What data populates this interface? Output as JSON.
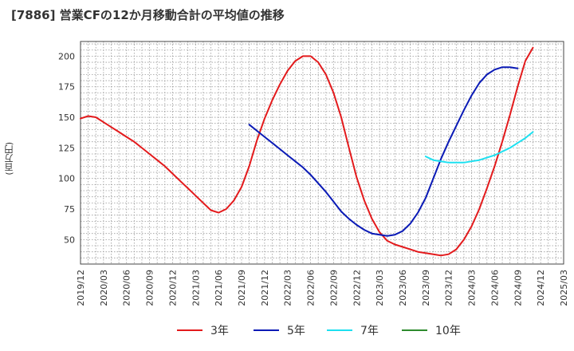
{
  "title": "[7886]  営業CFの12か月移動合計の平均値の推移",
  "chart_data": {
    "type": "line",
    "title": "[7886]  営業CFの12か月移動合計の平均値の推移",
    "xlabel": "",
    "ylabel": "(百万円)",
    "xlim": [
      "2019-12",
      "2025-03"
    ],
    "ylim": [
      30,
      212
    ],
    "yticks": [
      50,
      75,
      100,
      125,
      150,
      175,
      200
    ],
    "xticks": [
      "2019/12",
      "2020/03",
      "2020/06",
      "2020/09",
      "2020/12",
      "2021/03",
      "2021/06",
      "2021/09",
      "2021/12",
      "2022/03",
      "2022/06",
      "2022/09",
      "2022/12",
      "2023/03",
      "2023/06",
      "2023/09",
      "2023/12",
      "2024/03",
      "2024/06",
      "2024/09",
      "2024/12",
      "2025/03"
    ],
    "grid": true,
    "legend_position": "bottom",
    "series": [
      {
        "name": "3年",
        "color": "#e31a1c",
        "points": [
          [
            "2019-12",
            149
          ],
          [
            "2020-01",
            151
          ],
          [
            "2020-02",
            150
          ],
          [
            "2020-03",
            146
          ],
          [
            "2020-04",
            142
          ],
          [
            "2020-05",
            138
          ],
          [
            "2020-06",
            134
          ],
          [
            "2020-07",
            130
          ],
          [
            "2020-08",
            125
          ],
          [
            "2020-09",
            120
          ],
          [
            "2020-10",
            115
          ],
          [
            "2020-11",
            110
          ],
          [
            "2020-12",
            104
          ],
          [
            "2021-01",
            98
          ],
          [
            "2021-02",
            92
          ],
          [
            "2021-03",
            86
          ],
          [
            "2021-04",
            80
          ],
          [
            "2021-05",
            74
          ],
          [
            "2021-06",
            72
          ],
          [
            "2021-07",
            75
          ],
          [
            "2021-08",
            82
          ],
          [
            "2021-09",
            93
          ],
          [
            "2021-10",
            110
          ],
          [
            "2021-11",
            131
          ],
          [
            "2021-12",
            149
          ],
          [
            "2022-01",
            164
          ],
          [
            "2022-02",
            177
          ],
          [
            "2022-03",
            188
          ],
          [
            "2022-04",
            196
          ],
          [
            "2022-05",
            200
          ],
          [
            "2022-06",
            200
          ],
          [
            "2022-07",
            195
          ],
          [
            "2022-08",
            185
          ],
          [
            "2022-09",
            170
          ],
          [
            "2022-10",
            150
          ],
          [
            "2022-11",
            125
          ],
          [
            "2022-12",
            101
          ],
          [
            "2023-01",
            82
          ],
          [
            "2023-02",
            67
          ],
          [
            "2023-03",
            56
          ],
          [
            "2023-04",
            49
          ],
          [
            "2023-05",
            46
          ],
          [
            "2023-06",
            44
          ],
          [
            "2023-07",
            42
          ],
          [
            "2023-08",
            40
          ],
          [
            "2023-09",
            39
          ],
          [
            "2023-10",
            38
          ],
          [
            "2023-11",
            37
          ],
          [
            "2023-12",
            38
          ],
          [
            "2024-01",
            42
          ],
          [
            "2024-02",
            50
          ],
          [
            "2024-03",
            61
          ],
          [
            "2024-04",
            75
          ],
          [
            "2024-05",
            92
          ],
          [
            "2024-06",
            110
          ],
          [
            "2024-07",
            130
          ],
          [
            "2024-08",
            152
          ],
          [
            "2024-09",
            175
          ],
          [
            "2024-10",
            196
          ],
          [
            "2024-11",
            207
          ]
        ]
      },
      {
        "name": "5年",
        "color": "#0a1ab6",
        "points": [
          [
            "2021-10",
            144
          ],
          [
            "2021-11",
            139
          ],
          [
            "2021-12",
            134
          ],
          [
            "2022-01",
            129
          ],
          [
            "2022-02",
            124
          ],
          [
            "2022-03",
            119
          ],
          [
            "2022-04",
            114
          ],
          [
            "2022-05",
            109
          ],
          [
            "2022-06",
            103
          ],
          [
            "2022-07",
            96
          ],
          [
            "2022-08",
            89
          ],
          [
            "2022-09",
            81
          ],
          [
            "2022-10",
            73
          ],
          [
            "2022-11",
            67
          ],
          [
            "2022-12",
            62
          ],
          [
            "2023-01",
            58
          ],
          [
            "2023-02",
            55
          ],
          [
            "2023-03",
            54
          ],
          [
            "2023-04",
            53
          ],
          [
            "2023-05",
            54
          ],
          [
            "2023-06",
            57
          ],
          [
            "2023-07",
            63
          ],
          [
            "2023-08",
            72
          ],
          [
            "2023-09",
            84
          ],
          [
            "2023-10",
            100
          ],
          [
            "2023-11",
            116
          ],
          [
            "2023-12",
            130
          ],
          [
            "2024-01",
            143
          ],
          [
            "2024-02",
            156
          ],
          [
            "2024-03",
            168
          ],
          [
            "2024-04",
            178
          ],
          [
            "2024-05",
            185
          ],
          [
            "2024-06",
            189
          ],
          [
            "2024-07",
            191
          ],
          [
            "2024-08",
            191
          ],
          [
            "2024-09",
            190
          ]
        ]
      },
      {
        "name": "7年",
        "color": "#1de0f0",
        "points": [
          [
            "2023-09",
            118
          ],
          [
            "2023-10",
            115
          ],
          [
            "2023-11",
            114
          ],
          [
            "2023-12",
            113
          ],
          [
            "2024-01",
            113
          ],
          [
            "2024-02",
            113
          ],
          [
            "2024-03",
            114
          ],
          [
            "2024-04",
            115
          ],
          [
            "2024-05",
            117
          ],
          [
            "2024-06",
            119
          ],
          [
            "2024-07",
            122
          ],
          [
            "2024-08",
            125
          ],
          [
            "2024-09",
            129
          ],
          [
            "2024-10",
            133
          ],
          [
            "2024-11",
            138
          ]
        ]
      },
      {
        "name": "10年",
        "color": "#2e8b2e",
        "points": []
      }
    ]
  }
}
